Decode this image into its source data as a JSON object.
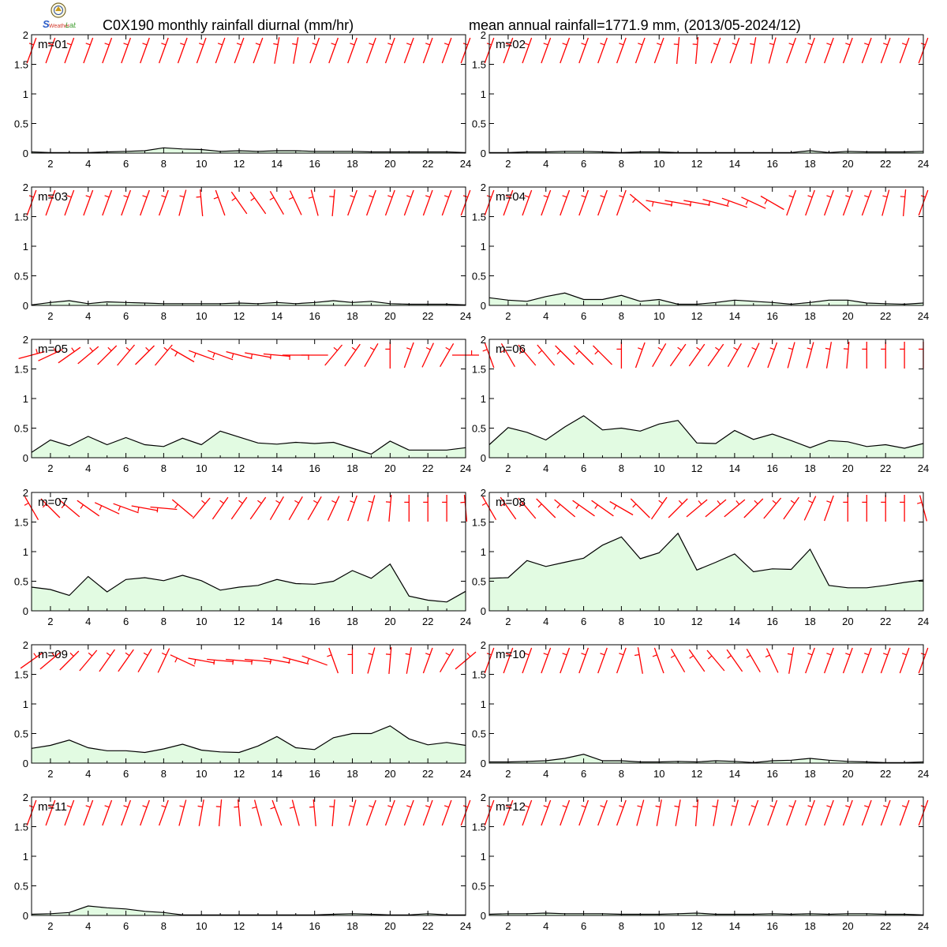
{
  "title_left": "C0X190 monthly rainfall diurnal (mm/hr)",
  "title_right": "mean annual rainfall=1771.9 mm, (2013/05-2024/12)",
  "logo": {
    "name": "lab-logo",
    "text": "Lab"
  },
  "colors": {
    "area_fill": "#e2fbe2",
    "line": "#000000",
    "wind": "#ff0000"
  },
  "chart_data": {
    "type": "area",
    "x": [
      1,
      2,
      3,
      4,
      5,
      6,
      7,
      8,
      9,
      10,
      11,
      12,
      13,
      14,
      15,
      16,
      17,
      18,
      19,
      20,
      21,
      22,
      23,
      24
    ],
    "xlim": [
      1,
      24
    ],
    "ylim": [
      0,
      2
    ],
    "x_ticks": [
      2,
      4,
      6,
      8,
      10,
      12,
      14,
      16,
      18,
      20,
      22,
      24
    ],
    "y_ticks": [
      0,
      0.5,
      1,
      1.5,
      2
    ],
    "y_tick_labels": [
      "0",
      "0.5",
      "1",
      "1.5",
      "2"
    ],
    "grid": false,
    "panels": [
      {
        "label": "m=01",
        "values": [
          0.02,
          0.01,
          0.01,
          0.01,
          0.02,
          0.03,
          0.04,
          0.09,
          0.07,
          0.06,
          0.03,
          0.04,
          0.03,
          0.04,
          0.04,
          0.03,
          0.03,
          0.03,
          0.02,
          0.02,
          0.02,
          0.02,
          0.02,
          0.01
        ],
        "wind_dir": [
          200,
          200,
          200,
          200,
          200,
          200,
          200,
          200,
          200,
          200,
          200,
          200,
          200,
          190,
          190,
          200,
          200,
          200,
          200,
          200,
          200,
          200,
          200,
          200
        ]
      },
      {
        "label": "m=02",
        "values": [
          0.01,
          0.01,
          0.02,
          0.02,
          0.03,
          0.03,
          0.02,
          0.01,
          0.02,
          0.02,
          0.01,
          0.01,
          0.01,
          0.01,
          0.01,
          0.01,
          0.01,
          0.04,
          0.01,
          0.03,
          0.02,
          0.02,
          0.02,
          0.03
        ],
        "wind_dir": [
          200,
          200,
          200,
          200,
          200,
          200,
          200,
          200,
          200,
          200,
          185,
          185,
          200,
          200,
          190,
          195,
          200,
          200,
          200,
          200,
          200,
          200,
          200,
          200
        ]
      },
      {
        "label": "m=03",
        "values": [
          0.01,
          0.05,
          0.08,
          0.03,
          0.06,
          0.05,
          0.04,
          0.03,
          0.03,
          0.03,
          0.03,
          0.04,
          0.03,
          0.05,
          0.03,
          0.05,
          0.08,
          0.05,
          0.07,
          0.03,
          0.02,
          0.02,
          0.02,
          0.01
        ],
        "wind_dir": [
          200,
          200,
          200,
          200,
          200,
          200,
          200,
          200,
          195,
          175,
          160,
          145,
          145,
          150,
          155,
          165,
          185,
          200,
          200,
          200,
          200,
          200,
          200,
          200
        ]
      },
      {
        "label": "m=04",
        "values": [
          0.13,
          0.09,
          0.07,
          0.15,
          0.21,
          0.1,
          0.1,
          0.17,
          0.07,
          0.1,
          0.02,
          0.02,
          0.05,
          0.09,
          0.07,
          0.05,
          0.02,
          0.05,
          0.09,
          0.09,
          0.04,
          0.03,
          0.02,
          0.04
        ],
        "wind_dir": [
          200,
          200,
          200,
          200,
          200,
          200,
          200,
          200,
          130,
          100,
          100,
          100,
          105,
          110,
          115,
          120,
          200,
          200,
          200,
          200,
          200,
          195,
          185,
          200
        ]
      },
      {
        "label": "m=05",
        "values": [
          0.09,
          0.3,
          0.2,
          0.36,
          0.22,
          0.34,
          0.22,
          0.19,
          0.33,
          0.22,
          0.45,
          0.35,
          0.25,
          0.23,
          0.26,
          0.24,
          0.26,
          0.16,
          0.06,
          0.28,
          0.13,
          0.13,
          0.13,
          0.17
        ],
        "wind_dir": [
          255,
          245,
          235,
          230,
          225,
          220,
          225,
          220,
          120,
          110,
          110,
          105,
          100,
          95,
          90,
          90,
          220,
          215,
          210,
          180,
          200,
          205,
          210,
          270
        ]
      },
      {
        "label": "m=06",
        "values": [
          0.22,
          0.51,
          0.43,
          0.3,
          0.52,
          0.71,
          0.47,
          0.5,
          0.45,
          0.57,
          0.63,
          0.25,
          0.24,
          0.46,
          0.31,
          0.4,
          0.29,
          0.17,
          0.29,
          0.27,
          0.19,
          0.22,
          0.16,
          0.24
        ],
        "wind_dir": [
          160,
          150,
          140,
          140,
          135,
          135,
          135,
          180,
          200,
          210,
          215,
          215,
          215,
          210,
          205,
          200,
          195,
          195,
          190,
          185,
          180,
          180,
          180,
          180
        ]
      },
      {
        "label": "m=07",
        "values": [
          0.4,
          0.36,
          0.26,
          0.58,
          0.32,
          0.53,
          0.56,
          0.51,
          0.6,
          0.51,
          0.35,
          0.4,
          0.43,
          0.53,
          0.46,
          0.45,
          0.5,
          0.68,
          0.55,
          0.79,
          0.25,
          0.18,
          0.15,
          0.33
        ],
        "wind_dir": [
          150,
          135,
          130,
          125,
          115,
          110,
          100,
          95,
          130,
          220,
          215,
          215,
          215,
          210,
          210,
          210,
          205,
          200,
          195,
          185,
          180,
          180,
          180,
          175
        ]
      },
      {
        "label": "m=08",
        "values": [
          0.55,
          0.56,
          0.85,
          0.75,
          0.82,
          0.89,
          1.11,
          1.25,
          0.88,
          0.98,
          1.31,
          0.69,
          0.82,
          0.96,
          0.66,
          0.71,
          0.7,
          1.04,
          0.43,
          0.39,
          0.39,
          0.43,
          0.48,
          0.52
        ],
        "wind_dir": [
          150,
          145,
          140,
          135,
          130,
          125,
          125,
          120,
          135,
          215,
          225,
          230,
          230,
          230,
          225,
          220,
          215,
          205,
          200,
          180,
          180,
          180,
          180,
          165
        ]
      },
      {
        "label": "m=09",
        "values": [
          0.25,
          0.3,
          0.39,
          0.26,
          0.21,
          0.21,
          0.18,
          0.24,
          0.32,
          0.22,
          0.19,
          0.18,
          0.29,
          0.45,
          0.26,
          0.23,
          0.43,
          0.5,
          0.5,
          0.63,
          0.41,
          0.31,
          0.35,
          0.3
        ],
        "wind_dir": [
          235,
          230,
          225,
          220,
          215,
          215,
          210,
          205,
          115,
          100,
          95,
          95,
          95,
          100,
          105,
          110,
          160,
          180,
          195,
          185,
          190,
          200,
          210,
          230
        ]
      },
      {
        "label": "m=10",
        "values": [
          0.02,
          0.02,
          0.03,
          0.04,
          0.08,
          0.15,
          0.04,
          0.04,
          0.02,
          0.02,
          0.03,
          0.02,
          0.04,
          0.03,
          0.01,
          0.04,
          0.05,
          0.08,
          0.05,
          0.03,
          0.02,
          0.01,
          0.01,
          0.02
        ],
        "wind_dir": [
          200,
          200,
          200,
          200,
          200,
          200,
          200,
          200,
          170,
          160,
          150,
          145,
          140,
          145,
          150,
          155,
          190,
          200,
          200,
          200,
          200,
          200,
          200,
          200
        ]
      },
      {
        "label": "m=11",
        "values": [
          0.02,
          0.03,
          0.05,
          0.16,
          0.13,
          0.11,
          0.07,
          0.05,
          0.01,
          0.01,
          0.01,
          0.01,
          0.01,
          0.01,
          0.01,
          0.01,
          0.02,
          0.03,
          0.02,
          0.01,
          0.01,
          0.03,
          0.01,
          0.01
        ],
        "wind_dir": [
          200,
          200,
          200,
          200,
          200,
          200,
          200,
          200,
          195,
          190,
          185,
          175,
          165,
          160,
          165,
          175,
          185,
          195,
          200,
          200,
          200,
          200,
          200,
          200
        ]
      },
      {
        "label": "m=12",
        "values": [
          0.02,
          0.03,
          0.03,
          0.04,
          0.03,
          0.03,
          0.03,
          0.02,
          0.02,
          0.02,
          0.03,
          0.04,
          0.02,
          0.02,
          0.02,
          0.03,
          0.02,
          0.03,
          0.02,
          0.03,
          0.03,
          0.02,
          0.02,
          0.01
        ],
        "wind_dir": [
          200,
          200,
          200,
          200,
          200,
          200,
          200,
          200,
          195,
          190,
          190,
          185,
          190,
          195,
          200,
          200,
          200,
          200,
          200,
          200,
          200,
          200,
          200,
          200
        ]
      }
    ]
  }
}
